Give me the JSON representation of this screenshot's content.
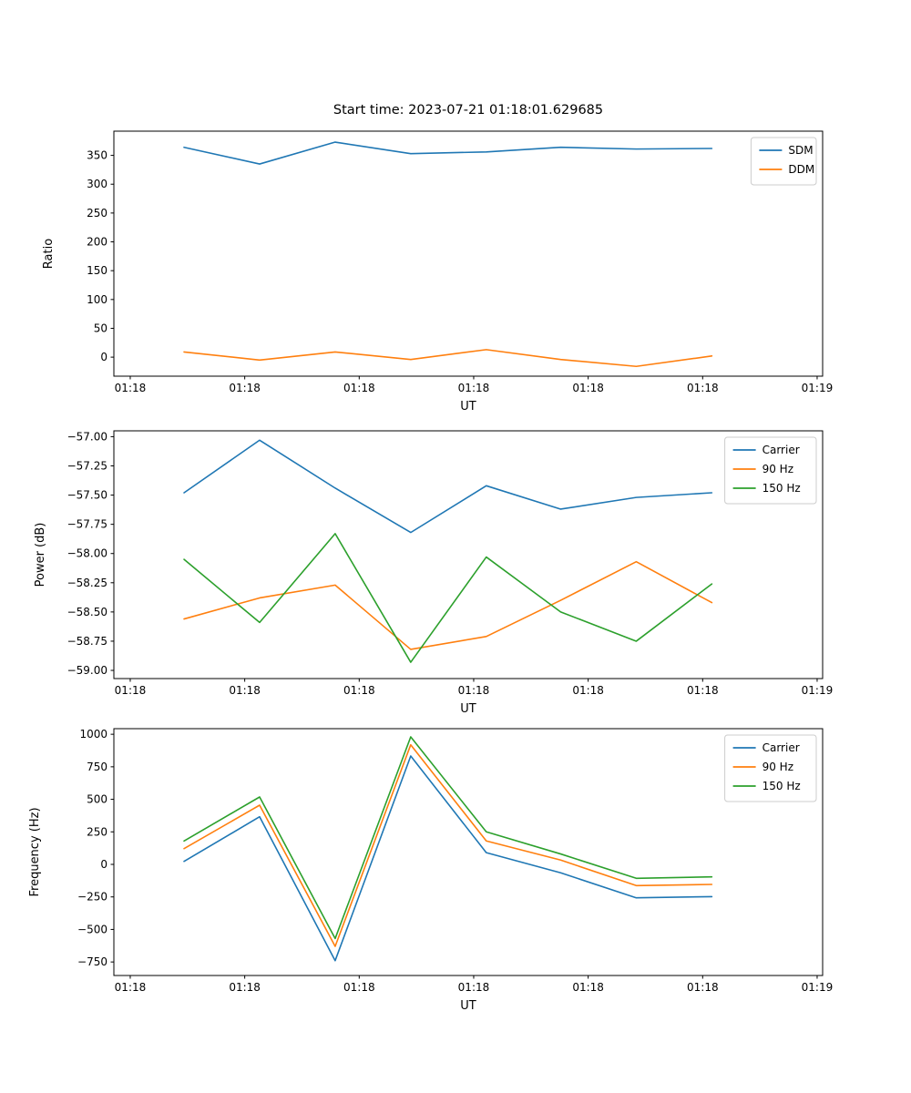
{
  "title": "Start time: 2023-07-21 01:18:01.629685",
  "chart_data": [
    {
      "name": "ratio",
      "type": "line",
      "title": "",
      "xlabel": "UT",
      "ylabel": "Ratio",
      "x_seconds_after_0118": [
        4.7,
        11.3,
        17.9,
        24.5,
        31.1,
        37.6,
        44.2,
        50.8
      ],
      "series": [
        {
          "name": "SDM",
          "color": "#1f77b4",
          "values": [
            364,
            335,
            373,
            353,
            356,
            364,
            361,
            362
          ]
        },
        {
          "name": "DDM",
          "color": "#ff7f0e",
          "values": [
            9,
            -5,
            9,
            -4,
            13,
            -4,
            -16,
            2
          ]
        }
      ],
      "xlim": [
        -1.43,
        60.48
      ],
      "ylim": [
        -33,
        392
      ],
      "xticks": {
        "values": [
          0,
          10,
          20,
          30,
          40,
          50,
          60
        ],
        "labels": [
          "01:18",
          "01:18",
          "01:18",
          "01:18",
          "01:18",
          "01:18",
          "01:19"
        ]
      },
      "yticks": {
        "values": [
          0,
          50,
          100,
          150,
          200,
          250,
          300,
          350
        ],
        "labels": [
          "0",
          "50",
          "100",
          "150",
          "200",
          "250",
          "300",
          "350"
        ]
      },
      "grid": false,
      "legend": {
        "position": "upper right",
        "entries": [
          "SDM",
          "DDM"
        ]
      }
    },
    {
      "name": "power",
      "type": "line",
      "title": "",
      "xlabel": "UT",
      "ylabel": "Power (dB)",
      "x_seconds_after_0118": [
        4.7,
        11.3,
        17.9,
        24.5,
        31.1,
        37.6,
        44.2,
        50.8
      ],
      "series": [
        {
          "name": "Carrier",
          "color": "#1f77b4",
          "values": [
            -57.48,
            -57.03,
            -57.44,
            -57.82,
            -57.42,
            -57.62,
            -57.52,
            -57.48
          ]
        },
        {
          "name": "90 Hz",
          "color": "#ff7f0e",
          "values": [
            -58.56,
            -58.38,
            -58.27,
            -58.82,
            -58.71,
            -58.4,
            -58.07,
            -58.42
          ]
        },
        {
          "name": "150 Hz",
          "color": "#2ca02c",
          "values": [
            -58.05,
            -58.59,
            -57.83,
            -58.93,
            -58.03,
            -58.5,
            -58.75,
            -58.26
          ]
        }
      ],
      "xlim": [
        -1.43,
        60.48
      ],
      "ylim": [
        -59.07,
        -56.95
      ],
      "xticks": {
        "values": [
          0,
          10,
          20,
          30,
          40,
          50,
          60
        ],
        "labels": [
          "01:18",
          "01:18",
          "01:18",
          "01:18",
          "01:18",
          "01:18",
          "01:19"
        ]
      },
      "yticks": {
        "values": [
          -57.0,
          -57.25,
          -57.5,
          -57.75,
          -58.0,
          -58.25,
          -58.5,
          -58.75,
          -59.0
        ],
        "labels": [
          "−57.00",
          "−57.25",
          "−57.50",
          "−57.75",
          "−58.00",
          "−58.25",
          "−58.50",
          "−58.75",
          "−59.00"
        ]
      },
      "grid": false,
      "legend": {
        "position": "upper right",
        "entries": [
          "Carrier",
          "90 Hz",
          "150 Hz"
        ]
      }
    },
    {
      "name": "frequency",
      "type": "line",
      "title": "",
      "xlabel": "UT",
      "ylabel": "Frequency (Hz)",
      "x_seconds_after_0118": [
        4.7,
        11.3,
        17.9,
        24.5,
        31.1,
        37.6,
        44.2,
        50.8
      ],
      "series": [
        {
          "name": "Carrier",
          "color": "#1f77b4",
          "values": [
            23,
            366,
            -740,
            833,
            90,
            -65,
            -257,
            -248
          ]
        },
        {
          "name": "90 Hz",
          "color": "#ff7f0e",
          "values": [
            121,
            455,
            -630,
            919,
            180,
            33,
            -163,
            -154
          ]
        },
        {
          "name": "150 Hz",
          "color": "#2ca02c",
          "values": [
            180,
            518,
            -570,
            980,
            250,
            80,
            -107,
            -96
          ]
        }
      ],
      "xlim": [
        -1.43,
        60.48
      ],
      "ylim": [
        -854,
        1043
      ],
      "xticks": {
        "values": [
          0,
          10,
          20,
          30,
          40,
          50,
          60
        ],
        "labels": [
          "01:18",
          "01:18",
          "01:18",
          "01:18",
          "01:18",
          "01:18",
          "01:19"
        ]
      },
      "yticks": {
        "values": [
          1000,
          750,
          500,
          250,
          0,
          -250,
          -500,
          -750
        ],
        "labels": [
          "1000",
          "750",
          "500",
          "250",
          "0",
          "−250",
          "−500",
          "−750"
        ]
      },
      "grid": false,
      "legend": {
        "position": "upper right",
        "entries": [
          "Carrier",
          "90 Hz",
          "150 Hz"
        ]
      }
    }
  ]
}
